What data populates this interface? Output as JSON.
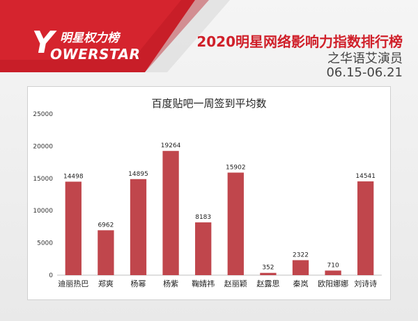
{
  "brand": {
    "logo_letter": "Y",
    "logo_cn": "明星权力榜",
    "logo_en": "OWERSTAR",
    "primary_color": "#d0202a",
    "bar_color": "#c0464c"
  },
  "header": {
    "title": "2020明星网络影响力指数排行榜",
    "subtitle": "之华语艾演员",
    "date_range": "06.15-06.21"
  },
  "chart_data": {
    "type": "bar",
    "title": "百度贴吧一周签到平均数",
    "categories": [
      "迪丽热巴",
      "郑爽",
      "杨幂",
      "杨紫",
      "鞠婧祎",
      "赵丽颖",
      "赵露思",
      "秦岚",
      "欧阳娜娜",
      "刘诗诗"
    ],
    "values": [
      14498,
      6962,
      14895,
      19264,
      8183,
      15902,
      352,
      2322,
      710,
      14541
    ],
    "data_labels": [
      "14498",
      "6962",
      "14895",
      "19264",
      "8183",
      "15902",
      "352",
      "2322",
      "710",
      "14541"
    ],
    "yticks": [
      "0",
      "5000",
      "10000",
      "15000",
      "20000",
      "25000"
    ],
    "ylim": [
      0,
      25000
    ],
    "grid": false,
    "legend": "none"
  }
}
